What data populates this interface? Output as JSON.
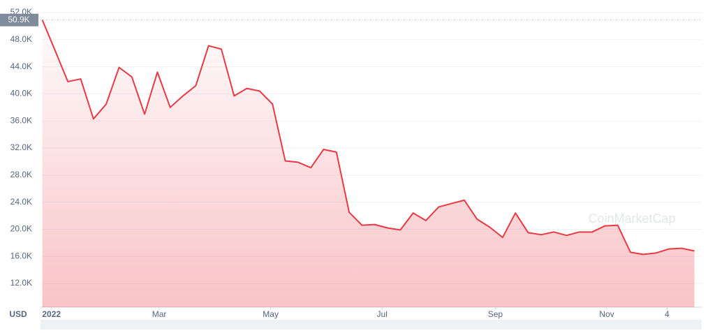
{
  "chart_data": {
    "type": "line",
    "y_unit_label": "USD",
    "watermark": "CoinMarketCap",
    "current_price": {
      "value": 50900,
      "label": "50.9K"
    },
    "x": [
      "2021-12-27",
      "2022-01-03",
      "2022-01-10",
      "2022-01-17",
      "2022-01-24",
      "2022-01-31",
      "2022-02-07",
      "2022-02-14",
      "2022-02-21",
      "2022-02-28",
      "2022-03-07",
      "2022-03-14",
      "2022-03-21",
      "2022-03-28",
      "2022-04-04",
      "2022-04-11",
      "2022-04-18",
      "2022-04-25",
      "2022-05-02",
      "2022-05-09",
      "2022-05-16",
      "2022-05-23",
      "2022-05-30",
      "2022-06-06",
      "2022-06-13",
      "2022-06-20",
      "2022-06-27",
      "2022-07-04",
      "2022-07-11",
      "2022-07-18",
      "2022-07-25",
      "2022-08-01",
      "2022-08-08",
      "2022-08-15",
      "2022-08-22",
      "2022-08-29",
      "2022-09-05",
      "2022-09-12",
      "2022-09-19",
      "2022-09-26",
      "2022-10-03",
      "2022-10-10",
      "2022-10-17",
      "2022-10-24",
      "2022-10-31",
      "2022-11-07",
      "2022-11-14",
      "2022-11-21",
      "2022-11-28",
      "2022-12-05",
      "2022-12-12",
      "2022-12-19"
    ],
    "series": [
      {
        "color": "#ea3943",
        "values": [
          50900,
          46400,
          41800,
          42200,
          36300,
          38500,
          43900,
          42500,
          37000,
          43200,
          38000,
          39700,
          41200,
          47100,
          46600,
          39700,
          40800,
          40400,
          38500,
          30100,
          29900,
          29100,
          31800,
          31400,
          22500,
          20600,
          20700,
          20200,
          19900,
          22400,
          21300,
          23300,
          23800,
          24300,
          21500,
          20300,
          18800,
          22400,
          19500,
          19200,
          19600,
          19100,
          19600,
          19600,
          20500,
          20600,
          16600,
          16300,
          16500,
          17100,
          17200,
          16800
        ]
      }
    ],
    "xlim": [
      "2021-12-26",
      "2022-12-23"
    ],
    "xticks": [
      {
        "value": "2022-01-01",
        "label": "2022"
      },
      {
        "value": "2022-03-01",
        "label": "Mar"
      },
      {
        "value": "2022-05-01",
        "label": "May"
      },
      {
        "value": "2022-07-01",
        "label": "Jul"
      },
      {
        "value": "2022-09-01",
        "label": "Sep"
      },
      {
        "value": "2022-11-01",
        "label": "Nov"
      },
      {
        "value": "2022-12-04",
        "label": "4"
      }
    ],
    "ylim": [
      8500,
      52000
    ],
    "yticks": [
      {
        "value": 12000,
        "label": "12.0K"
      },
      {
        "value": 16000,
        "label": "16.0K"
      },
      {
        "value": 20000,
        "label": "20.0K"
      },
      {
        "value": 24000,
        "label": "24.0K"
      },
      {
        "value": 28000,
        "label": "28.0K"
      },
      {
        "value": 32000,
        "label": "32.0K"
      },
      {
        "value": 36000,
        "label": "36.0K"
      },
      {
        "value": 40000,
        "label": "40.0K"
      },
      {
        "value": 44000,
        "label": "44.0K"
      },
      {
        "value": 48000,
        "label": "48.0K"
      },
      {
        "value": 52000,
        "label": "52.0K"
      }
    ],
    "grid": true
  }
}
